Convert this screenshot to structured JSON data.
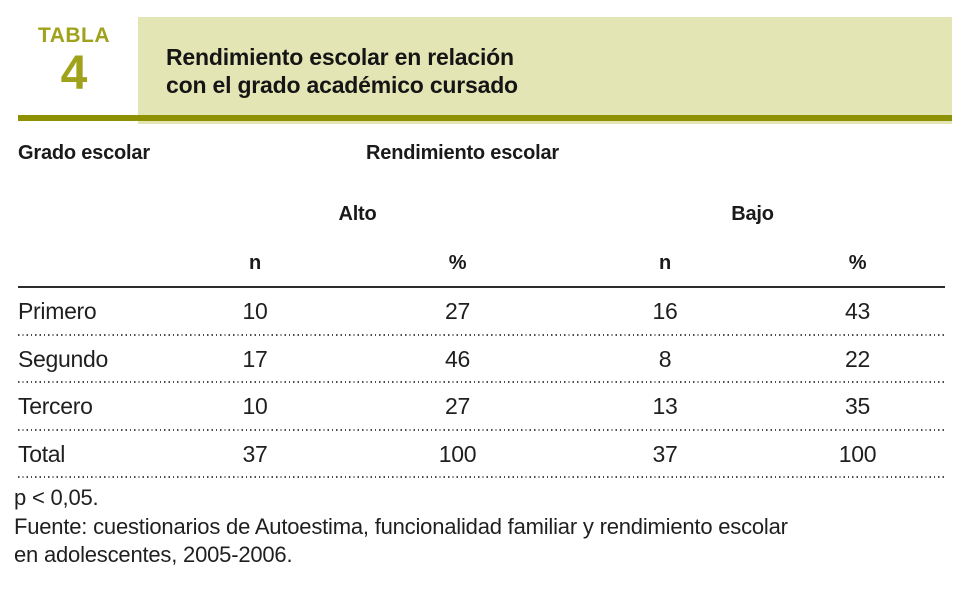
{
  "badge": {
    "word": "TABLA",
    "number": "4"
  },
  "title": {
    "line1": "Rendimiento escolar en relación",
    "line2": "con el grado académico cursado"
  },
  "table": {
    "row_header": "Grado escolar",
    "group_header": "Rendimiento escolar",
    "groups": [
      {
        "label": "Alto"
      },
      {
        "label": "Bajo"
      }
    ],
    "sub_headers": [
      "n",
      "%",
      "n",
      "%"
    ],
    "rows": [
      {
        "label": "Primero",
        "values": [
          "10",
          "27",
          "16",
          "43"
        ]
      },
      {
        "label": "Segundo",
        "values": [
          "17",
          "46",
          "8",
          "22"
        ]
      },
      {
        "label": "Tercero",
        "values": [
          "10",
          "27",
          "13",
          "35"
        ]
      },
      {
        "label": "Total",
        "values": [
          "37",
          "100",
          "37",
          "100"
        ]
      }
    ]
  },
  "footnotes": {
    "p_value": "p < 0,05.",
    "source_line1": "Fuente: cuestionarios de Autoestima, funcionalidad familiar y rendimiento escolar",
    "source_line2": "en adolescentes, 2005-2006."
  },
  "colors": {
    "olive_accent": "#8d9103",
    "olive_text": "#a0a21c",
    "banner_background": "#e4e5b5",
    "rule_dark": "#2d2d2d",
    "text": "#1f1f1f"
  }
}
